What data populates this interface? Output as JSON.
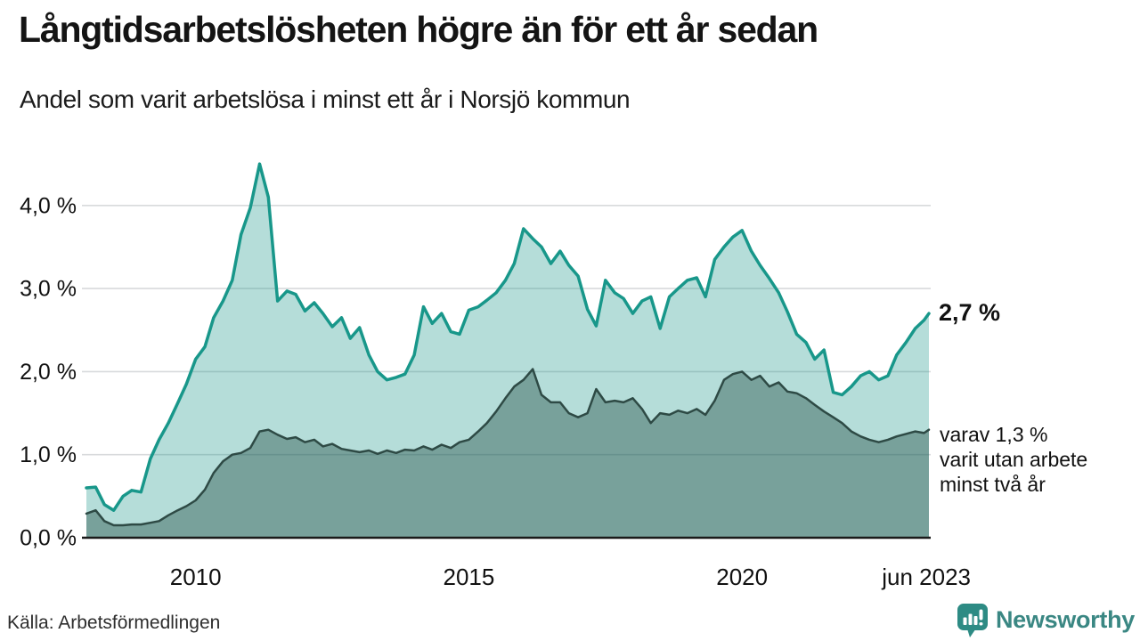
{
  "header": {
    "title": "Långtidsarbetslösheten högre än för ett år sedan",
    "subtitle": "Andel som varit arbetslösa i minst ett år i Norsjö kommun"
  },
  "annotations": {
    "latest_value": "2,7 %",
    "note_lines": [
      "varav 1,3 %",
      "varit utan arbete",
      "minst två år"
    ]
  },
  "footer": {
    "source": "Källa: Arbetsförmedlingen",
    "brand": "Newsworthy"
  },
  "colors": {
    "accent_teal": "#18978a",
    "light_area_fill": "rgba(26,148,138,0.32)",
    "dark_area_fill": "rgba(40,82,75,0.43)",
    "dark_line": "#2e4a45",
    "gridline": "#d8dadc",
    "axis_line": "#1a1a1a",
    "brand_teal": "#2d8b84",
    "text": "#111111"
  },
  "chart_data": {
    "type": "area",
    "title": "Långtidsarbetslösheten högre än för ett år sedan",
    "subtitle": "Andel som varit arbetslösa i minst ett år i Norsjö kommun",
    "x_unit": "decimal_year",
    "xlim": [
      2008.0,
      2023.42
    ],
    "ylim": [
      0.0,
      4.8
    ],
    "grid": true,
    "legend_position": "direct-labels-right",
    "x": [
      2008.0,
      2008.17,
      2008.33,
      2008.5,
      2008.67,
      2008.83,
      2009.0,
      2009.17,
      2009.33,
      2009.5,
      2009.67,
      2009.83,
      2010.0,
      2010.17,
      2010.33,
      2010.5,
      2010.67,
      2010.83,
      2011.0,
      2011.17,
      2011.33,
      2011.5,
      2011.67,
      2011.83,
      2012.0,
      2012.17,
      2012.33,
      2012.5,
      2012.67,
      2012.83,
      2013.0,
      2013.17,
      2013.33,
      2013.5,
      2013.67,
      2013.83,
      2014.0,
      2014.17,
      2014.33,
      2014.5,
      2014.67,
      2014.83,
      2015.0,
      2015.17,
      2015.33,
      2015.5,
      2015.67,
      2015.83,
      2016.0,
      2016.17,
      2016.33,
      2016.5,
      2016.67,
      2016.83,
      2017.0,
      2017.17,
      2017.33,
      2017.5,
      2017.67,
      2017.83,
      2018.0,
      2018.17,
      2018.33,
      2018.5,
      2018.67,
      2018.83,
      2019.0,
      2019.17,
      2019.33,
      2019.5,
      2019.67,
      2019.83,
      2020.0,
      2020.17,
      2020.33,
      2020.5,
      2020.67,
      2020.83,
      2021.0,
      2021.17,
      2021.33,
      2021.5,
      2021.67,
      2021.83,
      2022.0,
      2022.17,
      2022.33,
      2022.5,
      2022.67,
      2022.83,
      2023.0,
      2023.17,
      2023.33,
      2023.42
    ],
    "series": [
      {
        "name": "Andel arbetslösa minst ett år",
        "end_label": "2,7 %",
        "line_color": "#18978a",
        "fill_color": "rgba(26,148,138,0.32)",
        "line_width": 3.5,
        "values": [
          0.6,
          0.61,
          0.4,
          0.33,
          0.5,
          0.57,
          0.55,
          0.95,
          1.18,
          1.38,
          1.62,
          1.85,
          2.15,
          2.3,
          2.65,
          2.85,
          3.1,
          3.65,
          3.97,
          4.5,
          4.1,
          2.85,
          2.97,
          2.93,
          2.73,
          2.83,
          2.7,
          2.54,
          2.65,
          2.4,
          2.53,
          2.2,
          2.0,
          1.9,
          1.93,
          1.97,
          2.2,
          2.78,
          2.58,
          2.7,
          2.48,
          2.45,
          2.74,
          2.78,
          2.86,
          2.95,
          3.1,
          3.3,
          3.72,
          3.6,
          3.5,
          3.3,
          3.45,
          3.28,
          3.15,
          2.75,
          2.55,
          3.1,
          2.95,
          2.88,
          2.7,
          2.85,
          2.9,
          2.52,
          2.9,
          3.0,
          3.1,
          3.13,
          2.9,
          3.35,
          3.5,
          3.62,
          3.7,
          3.45,
          3.28,
          3.12,
          2.95,
          2.72,
          2.45,
          2.35,
          2.15,
          2.26,
          1.75,
          1.72,
          1.82,
          1.95,
          2.0,
          1.9,
          1.95,
          2.2,
          2.35,
          2.52,
          2.62,
          2.7
        ]
      },
      {
        "name": "varav arbetslösa minst två år",
        "end_label": "varav 1,3 % varit utan arbete minst två år",
        "line_color": "#2e4a45",
        "fill_color": "rgba(40,82,75,0.43)",
        "line_width": 2.5,
        "values": [
          0.29,
          0.33,
          0.2,
          0.15,
          0.15,
          0.16,
          0.16,
          0.18,
          0.2,
          0.27,
          0.33,
          0.38,
          0.45,
          0.58,
          0.78,
          0.92,
          1.0,
          1.02,
          1.08,
          1.28,
          1.3,
          1.24,
          1.19,
          1.21,
          1.15,
          1.18,
          1.1,
          1.13,
          1.07,
          1.05,
          1.03,
          1.05,
          1.01,
          1.05,
          1.02,
          1.06,
          1.05,
          1.1,
          1.06,
          1.12,
          1.08,
          1.15,
          1.18,
          1.28,
          1.38,
          1.52,
          1.68,
          1.82,
          1.9,
          2.03,
          1.72,
          1.63,
          1.63,
          1.5,
          1.45,
          1.5,
          1.79,
          1.63,
          1.65,
          1.63,
          1.68,
          1.55,
          1.38,
          1.5,
          1.48,
          1.53,
          1.5,
          1.55,
          1.48,
          1.65,
          1.9,
          1.97,
          2.0,
          1.9,
          1.95,
          1.82,
          1.87,
          1.76,
          1.74,
          1.68,
          1.6,
          1.52,
          1.45,
          1.38,
          1.28,
          1.22,
          1.18,
          1.15,
          1.18,
          1.22,
          1.25,
          1.28,
          1.26,
          1.3
        ]
      }
    ],
    "y_ticks": [
      {
        "value": 0.0,
        "label": "0,0 %"
      },
      {
        "value": 1.0,
        "label": "1,0 %"
      },
      {
        "value": 2.0,
        "label": "2,0 %"
      },
      {
        "value": 3.0,
        "label": "3,0 %"
      },
      {
        "value": 4.0,
        "label": "4,0 %"
      }
    ],
    "x_ticks": [
      {
        "value": 2010.0,
        "label": "2010"
      },
      {
        "value": 2015.0,
        "label": "2015"
      },
      {
        "value": 2020.0,
        "label": "2020"
      },
      {
        "value": 2023.42,
        "label": "jun 2023"
      }
    ]
  }
}
